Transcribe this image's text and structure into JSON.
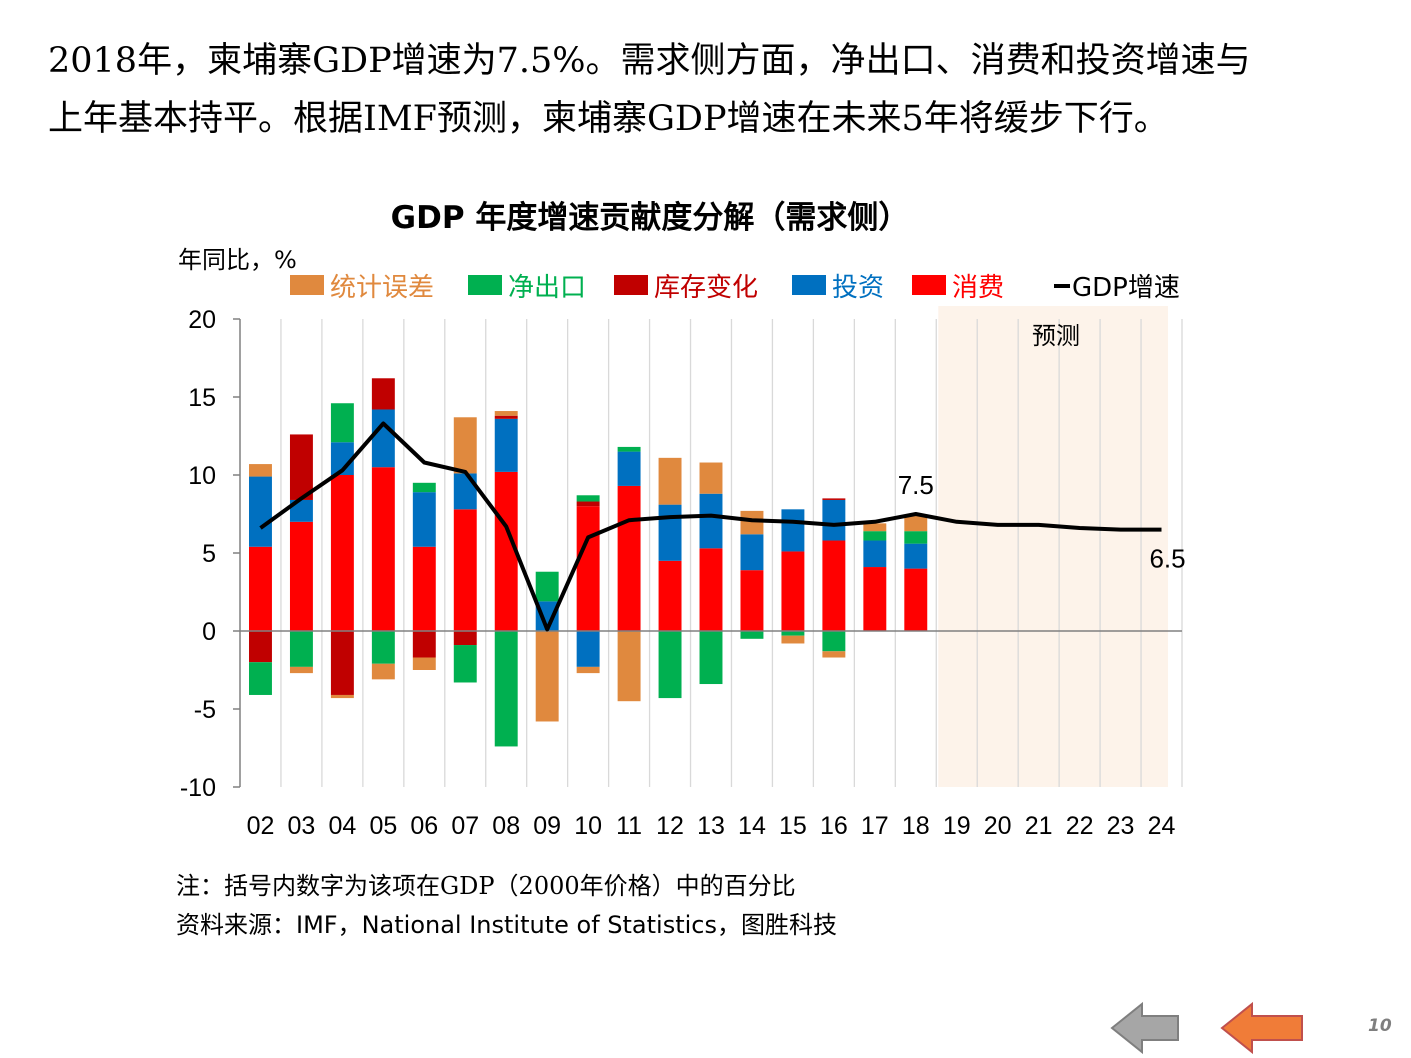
{
  "heading": {
    "line1": "2018年，柬埔寨GDP增速为7.5%。需求侧方面，净出口、消费和投资增速与",
    "line2": "上年基本持平。根据IMF预测，柬埔寨GDP增速在未来5年将缓步下行。"
  },
  "chart_data": {
    "type": "bar",
    "stacked": true,
    "title": "GDP 年度增速贡献度分解（需求侧）",
    "ylabel": "年同比，%",
    "xlabel": "",
    "ylim": [
      -10,
      20
    ],
    "yticks": [
      "20",
      "15",
      "10",
      "5",
      "0",
      "-5",
      "-10"
    ],
    "grid": "vertical",
    "legend_position": "top",
    "categories": [
      "02",
      "03",
      "04",
      "05",
      "06",
      "07",
      "08",
      "09",
      "10",
      "11",
      "12",
      "13",
      "14",
      "15",
      "16",
      "17",
      "18",
      "19",
      "20",
      "21",
      "22",
      "23",
      "24"
    ],
    "series": [
      {
        "name": "统计误差",
        "type": "bar",
        "color": "#E0893E",
        "values": [
          0.8,
          -0.4,
          -0.2,
          -1.0,
          -0.8,
          3.6,
          0.3,
          -5.8,
          -0.4,
          -4.5,
          3.0,
          2.0,
          1.5,
          -0.5,
          -0.4,
          0.5,
          1.0,
          null,
          null,
          null,
          null,
          null,
          null
        ]
      },
      {
        "name": "净出口",
        "type": "bar",
        "color": "#00B050",
        "values": [
          -2.1,
          -2.3,
          2.5,
          -2.1,
          0.6,
          -2.4,
          -7.4,
          1.9,
          0.4,
          0.3,
          -4.3,
          -3.4,
          -0.5,
          -0.3,
          -1.3,
          0.6,
          0.8,
          null,
          null,
          null,
          null,
          null,
          null
        ]
      },
      {
        "name": "库存变化",
        "type": "bar",
        "color": "#C00000",
        "values": [
          -2.0,
          4.2,
          -4.1,
          2.0,
          -1.7,
          -0.9,
          0.2,
          0.0,
          0.3,
          0.0,
          0.0,
          0.0,
          0.0,
          0.0,
          0.1,
          0.0,
          0.0,
          null,
          null,
          null,
          null,
          null,
          null
        ]
      },
      {
        "name": "投资",
        "type": "bar",
        "color": "#0070C0",
        "values": [
          4.5,
          1.4,
          2.1,
          3.7,
          3.5,
          2.3,
          3.4,
          1.9,
          -2.3,
          2.2,
          3.6,
          3.5,
          2.3,
          2.7,
          2.6,
          1.7,
          1.6,
          null,
          null,
          null,
          null,
          null,
          null
        ]
      },
      {
        "name": "消费",
        "type": "bar",
        "color": "#FF0000",
        "values": [
          5.4,
          7.0,
          10.0,
          10.5,
          5.4,
          7.8,
          10.2,
          0.0,
          8.0,
          9.3,
          4.5,
          5.3,
          3.9,
          5.1,
          5.8,
          4.1,
          4.0,
          null,
          null,
          null,
          null,
          null,
          null
        ]
      },
      {
        "name": "GDP增速",
        "type": "line",
        "color": "#000000",
        "values": [
          6.6,
          8.5,
          10.3,
          13.3,
          10.8,
          10.2,
          6.7,
          0.1,
          6.0,
          7.1,
          7.3,
          7.4,
          7.1,
          7.0,
          6.8,
          7.0,
          7.5,
          7.0,
          6.8,
          6.8,
          6.6,
          6.5,
          6.5
        ]
      }
    ],
    "annotations": [
      {
        "text": "7.5",
        "category": "18",
        "value": 7.5
      },
      {
        "text": "6.5",
        "category": "24",
        "value": 6.5
      }
    ],
    "forecast": {
      "label": "预测",
      "from": "19",
      "to": "24",
      "color": "#FDF3EA"
    }
  },
  "notes": {
    "note1": "注：括号内数字为该项在GDP（2000年价格）中的百分比",
    "source": "资料来源：IMF，National Institute of Statistics，图胜科技"
  },
  "nav": {
    "prev_color": "#A6A6A6",
    "next_color": "#F07C38"
  },
  "page_number": "10"
}
